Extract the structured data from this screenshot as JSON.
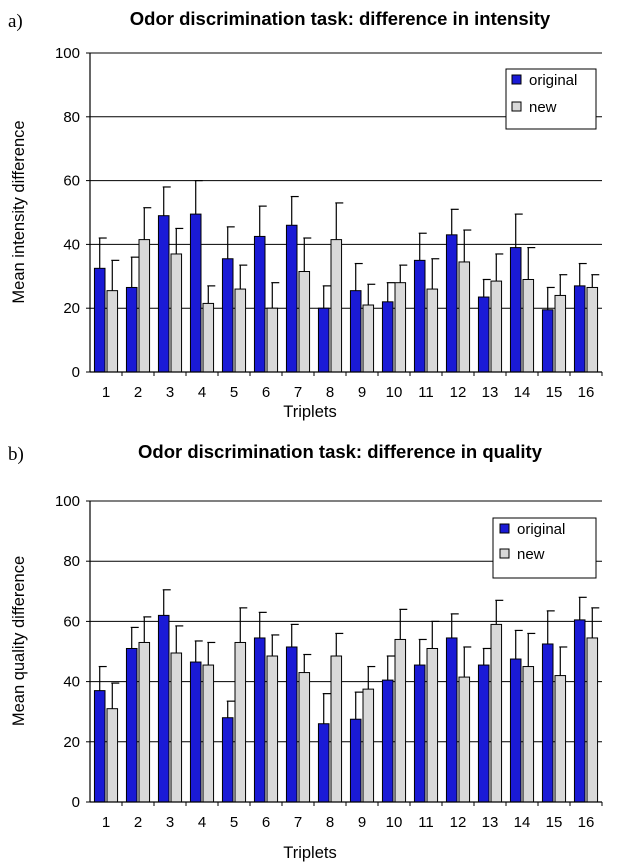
{
  "colors": {
    "original": "#1a1ad6",
    "new": "#d9d9d9",
    "grid": "#000000"
  },
  "chart_data": [
    {
      "type": "bar",
      "panel_label": "a)",
      "title": "Odor discrimination task: difference in intensity",
      "xlabel": "Triplets",
      "ylabel": "Mean intensity difference",
      "ylim": [
        0,
        100
      ],
      "yticks": [
        "0",
        "20",
        "40",
        "60",
        "80",
        "100"
      ],
      "grid": true,
      "legend": "top-right",
      "categories": [
        "1",
        "2",
        "3",
        "4",
        "5",
        "6",
        "7",
        "8",
        "9",
        "10",
        "11",
        "12",
        "13",
        "14",
        "15",
        "16"
      ],
      "series": [
        {
          "name": "original",
          "values": [
            32.5,
            26.5,
            49,
            49.5,
            35.5,
            42.5,
            46,
            20,
            25.5,
            22,
            35,
            43,
            23.5,
            39,
            19.5,
            27
          ],
          "errors": [
            9.5,
            9.5,
            9,
            10.5,
            10,
            9.5,
            9,
            7,
            8.5,
            6,
            8.5,
            8,
            5.5,
            10.5,
            7,
            7
          ]
        },
        {
          "name": "new",
          "values": [
            25.5,
            41.5,
            37,
            21.5,
            26,
            20,
            31.5,
            41.5,
            21,
            28,
            26,
            34.5,
            28.5,
            29,
            24,
            26.5
          ],
          "errors": [
            9.5,
            10,
            8,
            5.5,
            7.5,
            8,
            10.5,
            11.5,
            6.5,
            5.5,
            9.5,
            10,
            8.5,
            10,
            6.5,
            4
          ]
        }
      ]
    },
    {
      "type": "bar",
      "panel_label": "b)",
      "title": "Odor discrimination task: difference in quality",
      "xlabel": "Triplets",
      "ylabel": "Mean quality difference",
      "ylim": [
        0,
        100
      ],
      "yticks": [
        "0",
        "20",
        "40",
        "60",
        "80",
        "100"
      ],
      "grid": true,
      "legend": "top-right",
      "categories": [
        "1",
        "2",
        "3",
        "4",
        "5",
        "6",
        "7",
        "8",
        "9",
        "10",
        "11",
        "12",
        "13",
        "14",
        "15",
        "16"
      ],
      "series": [
        {
          "name": "original",
          "values": [
            37,
            51,
            62,
            46.5,
            28,
            54.5,
            51.5,
            26,
            27.5,
            40.5,
            45.5,
            54.5,
            45.5,
            47.5,
            52.5,
            60.5
          ],
          "errors": [
            8,
            7,
            8.5,
            7,
            5.5,
            8.5,
            7.5,
            10,
            9,
            8,
            8.5,
            8,
            5.5,
            9.5,
            11,
            7.5
          ]
        },
        {
          "name": "new",
          "values": [
            31,
            53,
            49.5,
            45.5,
            53,
            48.5,
            43,
            48.5,
            37.5,
            54,
            51,
            41.5,
            59,
            45,
            42,
            54.5
          ],
          "errors": [
            8.5,
            8.5,
            9,
            7.5,
            11.5,
            7,
            6,
            7.5,
            7.5,
            10,
            9,
            10,
            8,
            11,
            9.5,
            10
          ]
        }
      ]
    }
  ]
}
